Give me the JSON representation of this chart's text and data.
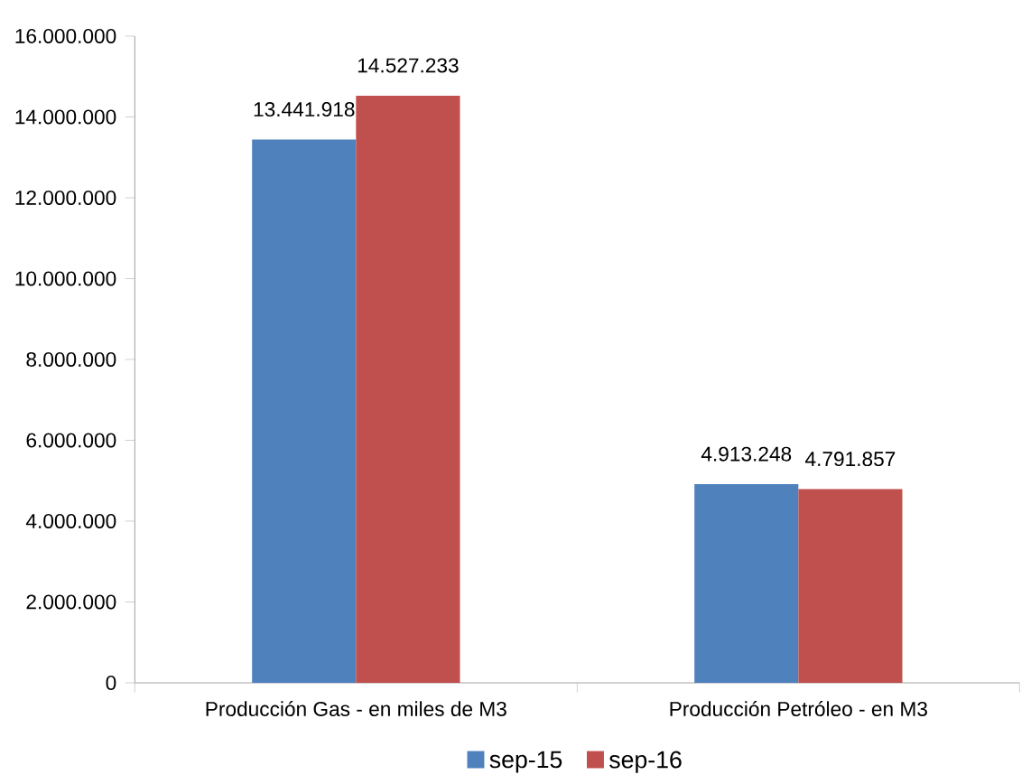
{
  "chart_data": {
    "type": "bar",
    "categories": [
      "Producción Gas - en miles de M3",
      "Producción Petróleo - en M3"
    ],
    "series": [
      {
        "name": "sep-15",
        "color": "#4f81bd",
        "values": [
          13441918,
          4913248
        ],
        "value_labels": [
          "13.441.918",
          "4.913.248"
        ]
      },
      {
        "name": "sep-16",
        "color": "#c0504d",
        "values": [
          14527233,
          4791857
        ],
        "value_labels": [
          "14.527.233",
          "4.791.857"
        ]
      }
    ],
    "ylim": [
      0,
      16000000
    ],
    "yticks": [
      {
        "value": 0,
        "label": "0"
      },
      {
        "value": 2000000,
        "label": "2.000.000"
      },
      {
        "value": 4000000,
        "label": "4.000.000"
      },
      {
        "value": 6000000,
        "label": "6.000.000"
      },
      {
        "value": 8000000,
        "label": "8.000.000"
      },
      {
        "value": 10000000,
        "label": "10.000.000"
      },
      {
        "value": 12000000,
        "label": "12.000.000"
      },
      {
        "value": 14000000,
        "label": "14.000.000"
      },
      {
        "value": 16000000,
        "label": "16.000.000"
      }
    ],
    "grid": false,
    "legend": "bottom"
  }
}
